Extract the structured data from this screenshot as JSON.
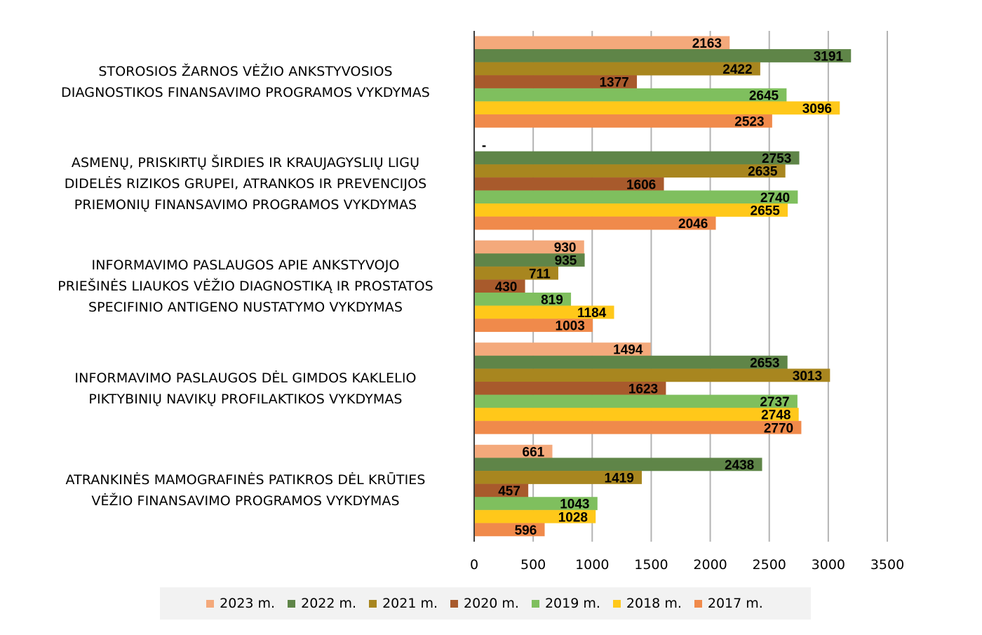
{
  "chart_data": {
    "type": "bar",
    "orientation": "horizontal",
    "categories": [
      "STOROSIOS ŽARNOS VĖŽIO ANKSTYVOSIOS DIAGNOSTIKOS FINANSAVIMO PROGRAMOS VYKDYMAS",
      "ASMENŲ, PRISKIRTŲ ŠIRDIES IR KRAUJAGYSLIŲ LIGŲ DIDELĖS RIZIKOS GRUPEI, ATRANKOS IR PREVENCIJOS PRIEMONIŲ FINANSAVIMO PROGRAMOS VYKDYMAS",
      "INFORMAVIMO PASLAUGOS APIE ANKSTYVOJO PRIEŠINĖS LIAUKOS VĖŽIO DIAGNOSTIKĄ IR PROSTATOS SPECIFINIO ANTIGENO NUSTATYMO VYKDYMAS",
      "INFORMAVIMO PASLAUGOS DĖL GIMDOS KAKLELIO PIKTYBINIŲ NAVIKŲ PROFILAKTIKOS VYKDYMAS",
      "ATRANKINĖS MAMOGRAFINĖS PATIKROS DĖL KRŪTIES VĖŽIO FINANSAVIMO PROGRAMOS VYKDYMAS"
    ],
    "category_lines": [
      [
        "STOROSIOS ŽARNOS VĖŽIO ANKSTYVOSIOS",
        "DIAGNOSTIKOS FINANSAVIMO PROGRAMOS VYKDYMAS"
      ],
      [
        "ASMENŲ, PRISKIRTŲ ŠIRDIES IR KRAUJAGYSLIŲ LIGŲ",
        "DIDELĖS RIZIKOS GRUPEI, ATRANKOS IR PREVENCIJOS",
        "PRIEMONIŲ FINANSAVIMO PROGRAMOS VYKDYMAS"
      ],
      [
        "INFORMAVIMO PASLAUGOS APIE ANKSTYVOJO",
        "PRIEŠINĖS LIAUKOS VĖŽIO DIAGNOSTIKĄ IR PROSTATOS",
        "SPECIFINIO ANTIGENO NUSTATYMO VYKDYMAS"
      ],
      [
        "INFORMAVIMO PASLAUGOS DĖL GIMDOS KAKLELIO",
        "PIKTYBINIŲ NAVIKŲ PROFILAKTIKOS VYKDYMAS"
      ],
      [
        "ATRANKINĖS MAMOGRAFINĖS PATIKROS DĖL KRŪTIES",
        "VĖŽIO FINANSAVIMO PROGRAMOS VYKDYMAS"
      ]
    ],
    "series": [
      {
        "name": "2023 m.",
        "color": "#f4a97b",
        "values": [
          2163,
          null,
          930,
          1494,
          661
        ],
        "labels": [
          "2163",
          "-",
          "930",
          "1494",
          "661"
        ]
      },
      {
        "name": "2022 m.",
        "color": "#5f8548",
        "values": [
          3191,
          2753,
          935,
          2653,
          2438
        ],
        "labels": [
          "3191",
          "2753",
          "935",
          "2653",
          "2438"
        ]
      },
      {
        "name": "2021 m.",
        "color": "#a8861f",
        "values": [
          2422,
          2635,
          711,
          3013,
          1419
        ],
        "labels": [
          "2422",
          "2635",
          "711",
          "3013",
          "1419"
        ]
      },
      {
        "name": "2020 m.",
        "color": "#a85a2c",
        "values": [
          1377,
          1606,
          430,
          1623,
          457
        ],
        "labels": [
          "1377",
          "1606",
          "430",
          "1623",
          "457"
        ]
      },
      {
        "name": "2019 m.",
        "color": "#7fbf5e",
        "values": [
          2645,
          2740,
          819,
          2737,
          1043
        ],
        "labels": [
          "2645",
          "2740",
          "819",
          "2737",
          "1043"
        ]
      },
      {
        "name": "2018 m.",
        "color": "#ffc81a",
        "values": [
          3096,
          2655,
          1184,
          2748,
          1028
        ],
        "labels": [
          "3096",
          "2655",
          "1184",
          "2748",
          "1028"
        ]
      },
      {
        "name": "2017 m.",
        "color": "#f08a4b",
        "values": [
          2523,
          2046,
          1003,
          2770,
          596
        ],
        "labels": [
          "2523",
          "2046",
          "1003",
          "2770",
          "596"
        ]
      }
    ],
    "xlim": [
      0,
      3500
    ],
    "xticks": [
      "0",
      "500",
      "1000",
      "1500",
      "2000",
      "2500",
      "3000",
      "3500"
    ],
    "grid": true,
    "legend_position": "bottom"
  }
}
